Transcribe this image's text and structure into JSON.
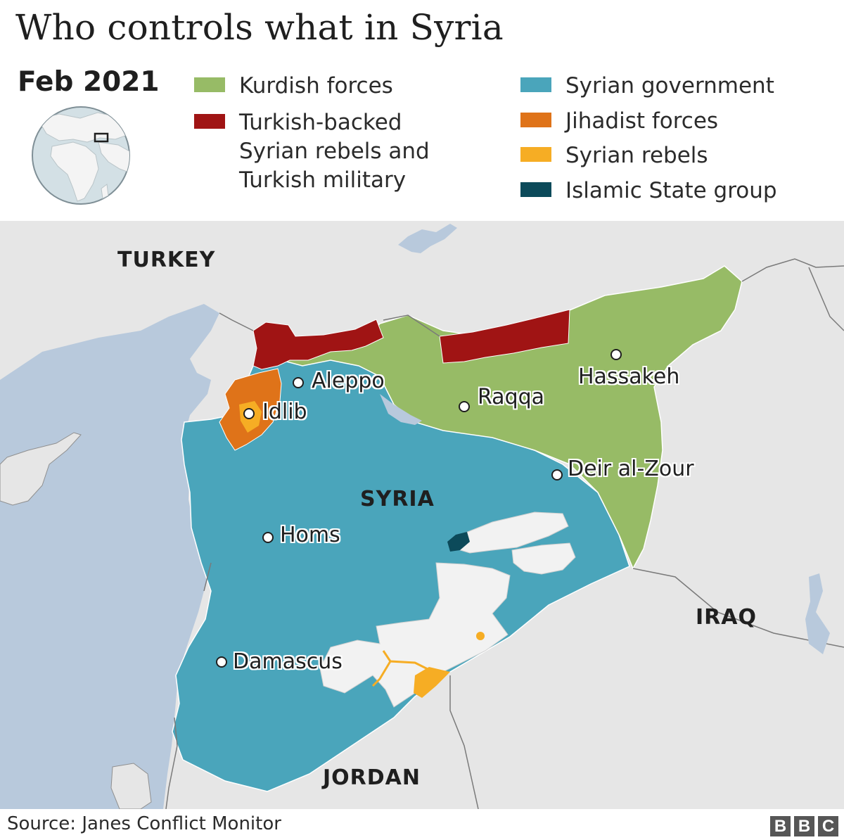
{
  "title": "Who controls what in Syria",
  "date": "Feb 2021",
  "legend": [
    {
      "label": "Kurdish forces",
      "color": "#97bb66"
    },
    {
      "label": "Turkish-backed\nSyrian rebels and\nTurkish military",
      "color": "#a01414"
    },
    {
      "label": "Syrian government",
      "color": "#4aa5bb"
    },
    {
      "label": "Jihadist forces",
      "color": "#df7319"
    },
    {
      "label": "Syrian rebels",
      "color": "#f6ad24"
    },
    {
      "label": "Islamic State group",
      "color": "#0c4a5a"
    }
  ],
  "countries": {
    "turkey": "TURKEY",
    "syria": "SYRIA",
    "iraq": "IRAQ",
    "jordan": "JORDAN"
  },
  "cities": {
    "aleppo": "Aleppo",
    "idlib": "Idlib",
    "raqqa": "Raqqa",
    "hassakeh": "Hassakeh",
    "deir": "Deir al-Zour",
    "homs": "Homs",
    "damascus": "Damascus"
  },
  "colors": {
    "land": "#e6e6e6",
    "sea": "#b8c9dc",
    "unassigned": "#f2f2f2",
    "border": "#7a7a7a"
  },
  "source": "Source: Janes Conflict Monitor",
  "logo": "BBC"
}
